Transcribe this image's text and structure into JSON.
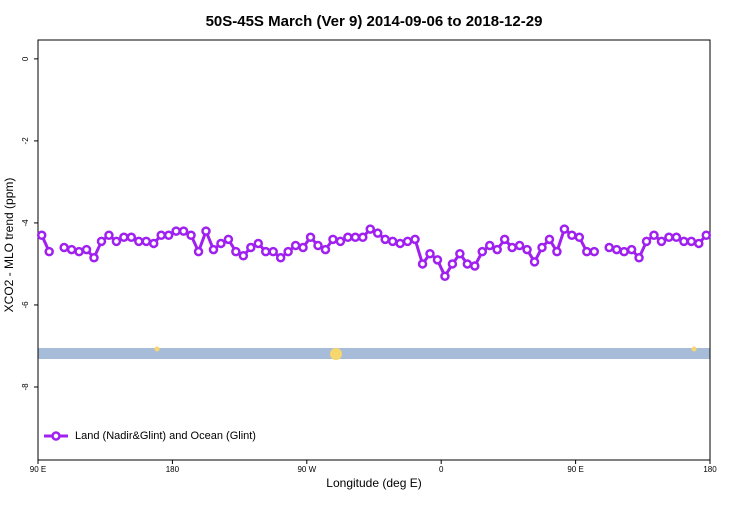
{
  "chart_data": {
    "type": "line",
    "title": "50S-45S March (Ver 9)   2014-09-06 to 2018-12-29",
    "x_label": "Longitude (deg E)",
    "y_label": "XCO2 - MLO trend (ppm)",
    "x": [
      92.5,
      97.5,
      102.5,
      107.5,
      112.5,
      117.5,
      122.5,
      127.5,
      132.5,
      137.5,
      142.5,
      147.5,
      152.5,
      157.5,
      162.5,
      167.5,
      172.5,
      177.5,
      182.5,
      187.5,
      192.5,
      197.5,
      202.5,
      207.5,
      212.5,
      217.5,
      222.5,
      227.5,
      232.5,
      237.5,
      242.5,
      247.5,
      252.5,
      257.5,
      262.5,
      267.5,
      272.5,
      277.5,
      282.5,
      287.5,
      292.5,
      297.5,
      302.5,
      307.5,
      312.5,
      317.5,
      322.5,
      327.5,
      332.5,
      337.5,
      342.5,
      347.5,
      352.5,
      357.5,
      362.5,
      367.5,
      372.5,
      377.5,
      382.5,
      387.5,
      392.5,
      397.5,
      402.5,
      407.5,
      412.5,
      417.5,
      422.5,
      427.5,
      432.5,
      437.5,
      442.5,
      447.5,
      452.5,
      457.5,
      462.5,
      467.5,
      472.5,
      477.5,
      482.5,
      487.5,
      492.5,
      497.5,
      502.5,
      507.5,
      512.5,
      517.5,
      522.5,
      527.5,
      532.5,
      537.5
    ],
    "series": [
      {
        "name": "Land (Nadir&Glint) and Ocean (Glint)",
        "color": "#a020f0",
        "values": [
          -4.3,
          -4.7,
          null,
          -4.6,
          -4.65,
          -4.7,
          -4.65,
          -4.85,
          -4.45,
          -4.3,
          -4.45,
          -4.35,
          -4.35,
          -4.45,
          -4.45,
          -4.5,
          -4.3,
          -4.3,
          -4.2,
          -4.2,
          -4.3,
          -4.7,
          -4.2,
          -4.65,
          -4.5,
          -4.4,
          -4.7,
          -4.8,
          -4.6,
          -4.5,
          -4.7,
          -4.7,
          -4.85,
          -4.7,
          -4.55,
          -4.6,
          -4.35,
          -4.55,
          -4.65,
          -4.4,
          -4.45,
          -4.35,
          -4.35,
          -4.35,
          -4.15,
          -4.25,
          -4.4,
          -4.45,
          -4.5,
          -4.45,
          -4.4,
          -5.0,
          -4.75,
          -4.9,
          -5.3,
          -5.0,
          -4.75,
          -5.0,
          -5.05,
          -4.7,
          -4.55,
          -4.65,
          -4.4,
          -4.6,
          -4.55,
          -4.65,
          -4.95,
          -4.6,
          -4.4,
          -4.7,
          -4.15,
          -4.3,
          -4.35,
          -4.7,
          -4.7,
          null,
          -4.6,
          -4.65,
          -4.7,
          -4.65,
          -4.85,
          -4.45,
          -4.3,
          -4.45,
          -4.35,
          -4.35,
          -4.45,
          -4.45,
          -4.5,
          -4.3
        ]
      }
    ],
    "xlim": [
      90,
      540
    ],
    "xticks": [
      {
        "value": 90,
        "label": "90 E"
      },
      180,
      {
        "value": 270,
        "label": "90 W"
      },
      {
        "value": 360,
        "label": "0"
      },
      {
        "value": 450,
        "label": "90 E"
      },
      {
        "value": 540,
        "label": "180"
      }
    ],
    "ylim": [
      -9.78,
      0.46
    ],
    "yticks": [
      0,
      -2,
      -4,
      -6,
      -8
    ],
    "legend": "bottom-left"
  }
}
